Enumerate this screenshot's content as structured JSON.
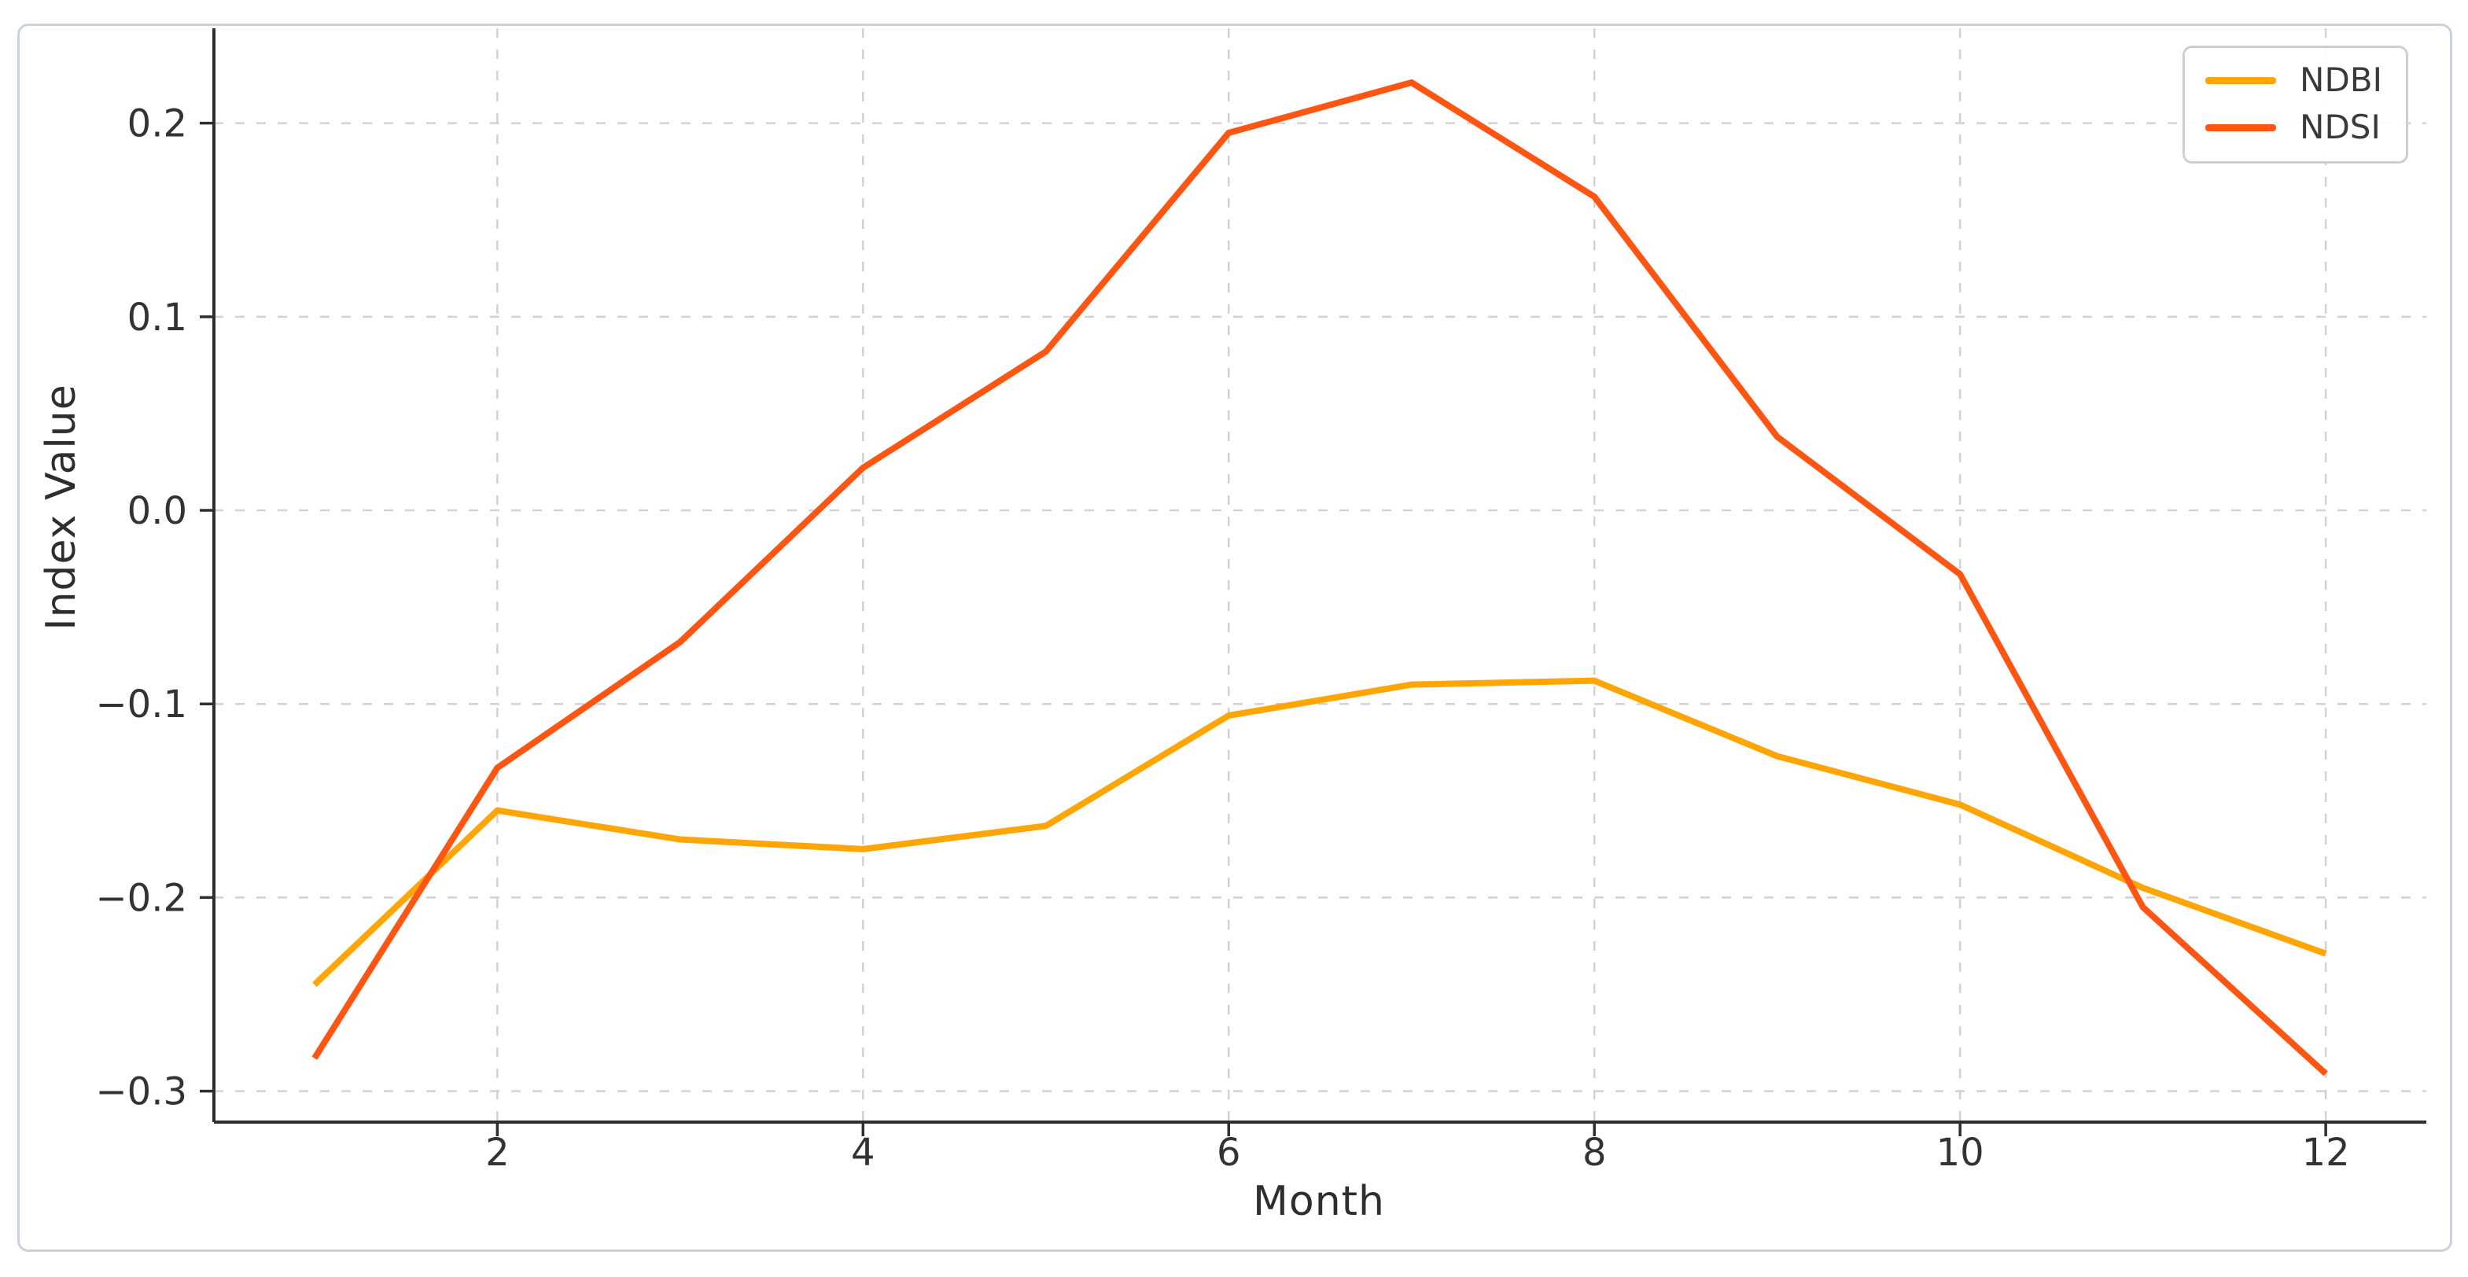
{
  "figure": {
    "background": "#ffffff",
    "frame_border_color": "#c9d3df"
  },
  "chart_data": {
    "type": "line",
    "title": "",
    "xlabel": "Month",
    "ylabel": "Index Value",
    "x": [
      1,
      2,
      3,
      4,
      5,
      6,
      7,
      8,
      9,
      10,
      11,
      12
    ],
    "series": [
      {
        "name": "NDBI",
        "color": "#FFA606",
        "values": [
          -0.245,
          -0.155,
          -0.17,
          -0.175,
          -0.163,
          -0.106,
          -0.09,
          -0.088,
          -0.127,
          -0.152,
          -0.195,
          -0.229
        ]
      },
      {
        "name": "NDSI",
        "color": "#FF5512",
        "values": [
          -0.283,
          -0.133,
          -0.068,
          0.022,
          0.082,
          0.195,
          0.221,
          0.162,
          0.038,
          -0.033,
          -0.205,
          -0.291
        ]
      }
    ],
    "xlim": [
      0.45,
      12.55
    ],
    "ylim": [
      -0.316,
      0.249
    ],
    "x_ticks": [
      2,
      4,
      6,
      8,
      10,
      12
    ],
    "x_tick_labels": [
      "2",
      "4",
      "6",
      "8",
      "10",
      "12"
    ],
    "y_ticks": [
      0.2,
      0.1,
      0.0,
      -0.1,
      -0.2,
      -0.3
    ],
    "y_tick_labels": [
      "0.2",
      "0.1",
      "0.0",
      "−0.1",
      "−0.2",
      "−0.3"
    ],
    "grid": true,
    "grid_color": "#d2d2d2",
    "spine_color": "#2e2e2e",
    "tick_label_color": "#333333",
    "legend_position": "upper right"
  }
}
